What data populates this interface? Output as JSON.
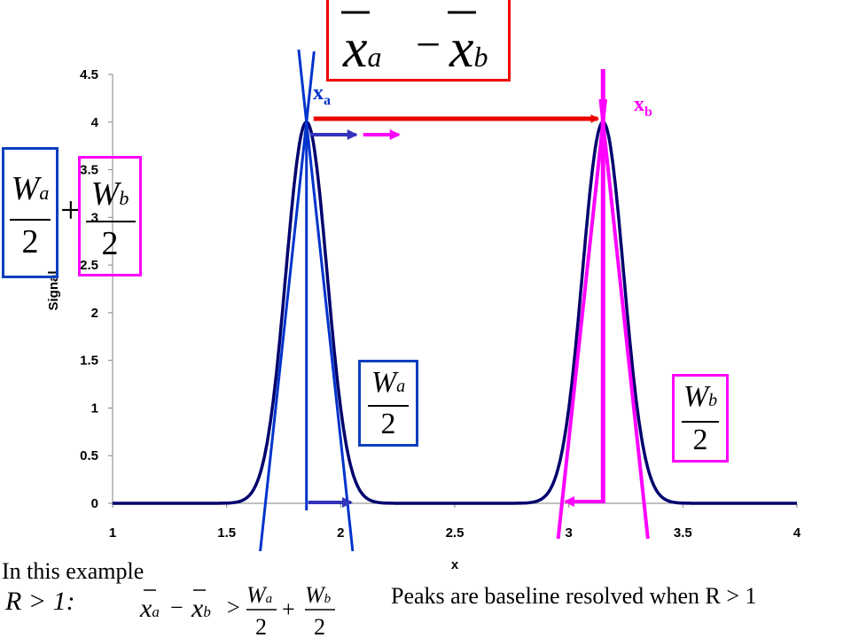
{
  "chart_data": {
    "type": "line",
    "xlabel": "x",
    "ylabel": "Signal",
    "xlim": [
      1,
      4
    ],
    "ylim": [
      0,
      4.5
    ],
    "x_ticks": [
      "1",
      "1.5",
      "2",
      "2.5",
      "3",
      "3.5",
      "4"
    ],
    "y_ticks": [
      "0",
      "0.5",
      "1",
      "1.5",
      "2",
      "2.5",
      "3",
      "3.5",
      "4",
      "4.5"
    ],
    "grid": false,
    "series": [
      {
        "peak_center": 1.85,
        "peak_height": 4.0,
        "sigma": 0.09,
        "baseline_width": 0.36
      },
      {
        "peak_center": 3.15,
        "peak_height": 4.0,
        "sigma": 0.09,
        "baseline_width": 0.36
      }
    ],
    "annotations": {
      "peak_a_label": "x",
      "peak_a_sub": "a",
      "peak_b_label": "x",
      "peak_b_sub": "b",
      "difference_formula": {
        "x1": "x",
        "s1": "a",
        "op": "−",
        "x2": "x",
        "s2": "b"
      },
      "half_width_a": {
        "num": "W",
        "sub": "a",
        "den": "2"
      },
      "half_width_b": {
        "num": "W",
        "sub": "b",
        "den": "2"
      },
      "plus": "+",
      "example_text": "In this example",
      "condition": {
        "R": "R > 1:",
        "lhs": "x",
        "lhs_sub": "a",
        "minus": "−",
        "rhs": "x",
        "rhs_sub": "b",
        "gt": ">",
        "plus": "+"
      },
      "resolved_text": "Peaks are baseline resolved when R > 1"
    },
    "colors": {
      "curve": "#00006e",
      "peak_a": "#0033cc",
      "peak_b": "#ff00ff",
      "separation_arrow": "#ee0000",
      "box_diff": "#ee0000"
    }
  }
}
